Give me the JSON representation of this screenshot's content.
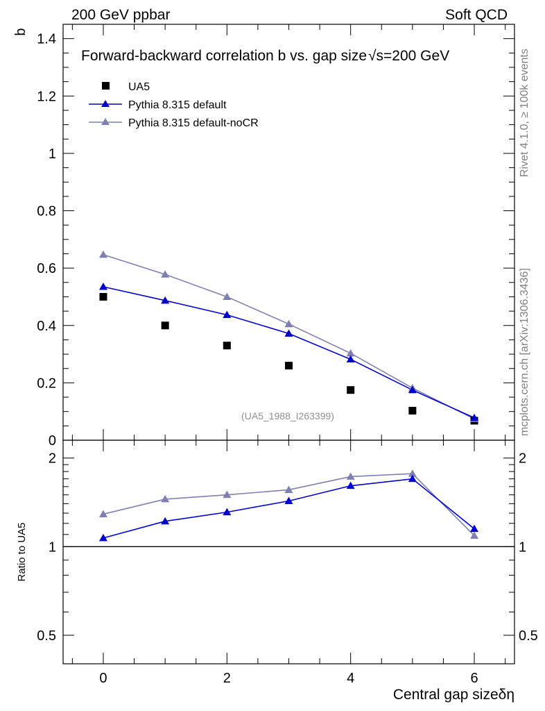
{
  "header": {
    "left": "200 GeV ppbar",
    "right": "Soft QCD"
  },
  "side_labels": {
    "rivet": "Rivet 4.1.0, ≥ 100k events",
    "mcplots": "mcplots.cern.ch [arXiv:1306.3436]"
  },
  "colors": {
    "data": "#000000",
    "default": "#0000cc",
    "nocr": "#7f7fb2"
  },
  "chart_data": [
    {
      "type": "scatter+line",
      "panel": "main",
      "title": "Forward-backward correlation b vs. gap size",
      "title_energy": "√s=200 GeV",
      "ylabel": "b",
      "ylim": [
        0,
        1.45
      ],
      "yticks": [
        0,
        0.2,
        0.4,
        0.6,
        0.8,
        1,
        1.2,
        1.4
      ],
      "ytick_labels": [
        "0",
        "0.2",
        "0.4",
        "0.6",
        "0.8",
        "1",
        "1.2",
        "1.4"
      ],
      "xlim": [
        -0.65,
        6.65
      ],
      "x": [
        0,
        1,
        2,
        3,
        4,
        5,
        6
      ],
      "watermark": "(UA5_1988_I263399)",
      "series": [
        {
          "name": "UA5",
          "marker": "square",
          "values": [
            0.5,
            0.4,
            0.33,
            0.26,
            0.175,
            0.103,
            0.068
          ]
        },
        {
          "name": "Pythia 8.315 default",
          "marker": "triangle",
          "values": [
            0.535,
            0.487,
            0.437,
            0.372,
            0.282,
            0.175,
            0.078
          ]
        },
        {
          "name": "Pythia 8.315 default-noCR",
          "marker": "triangle",
          "values": [
            0.647,
            0.578,
            0.5,
            0.405,
            0.303,
            0.182,
            0.074
          ]
        }
      ]
    },
    {
      "type": "line",
      "panel": "ratio",
      "ylabel": "Ratio to UA5",
      "xlabel": "Central gap size δη",
      "xlabel_main": "Central gap size",
      "xlabel_symbol": "δη",
      "yscale": "log",
      "ylim": [
        0.4,
        2.3
      ],
      "yticks": [
        0.5,
        1,
        2
      ],
      "ytick_labels": [
        "0.5",
        "1",
        "2"
      ],
      "xticks": [
        0,
        2,
        4,
        6
      ],
      "xtick_labels": [
        "0",
        "2",
        "4",
        "6"
      ],
      "x": [
        0,
        1,
        2,
        3,
        4,
        5,
        6
      ],
      "series": [
        {
          "name": "Pythia 8.315 default",
          "values": [
            1.07,
            1.22,
            1.31,
            1.43,
            1.61,
            1.7,
            1.15
          ]
        },
        {
          "name": "Pythia 8.315 default-noCR",
          "values": [
            1.29,
            1.45,
            1.5,
            1.56,
            1.73,
            1.77,
            1.09
          ]
        }
      ]
    }
  ]
}
